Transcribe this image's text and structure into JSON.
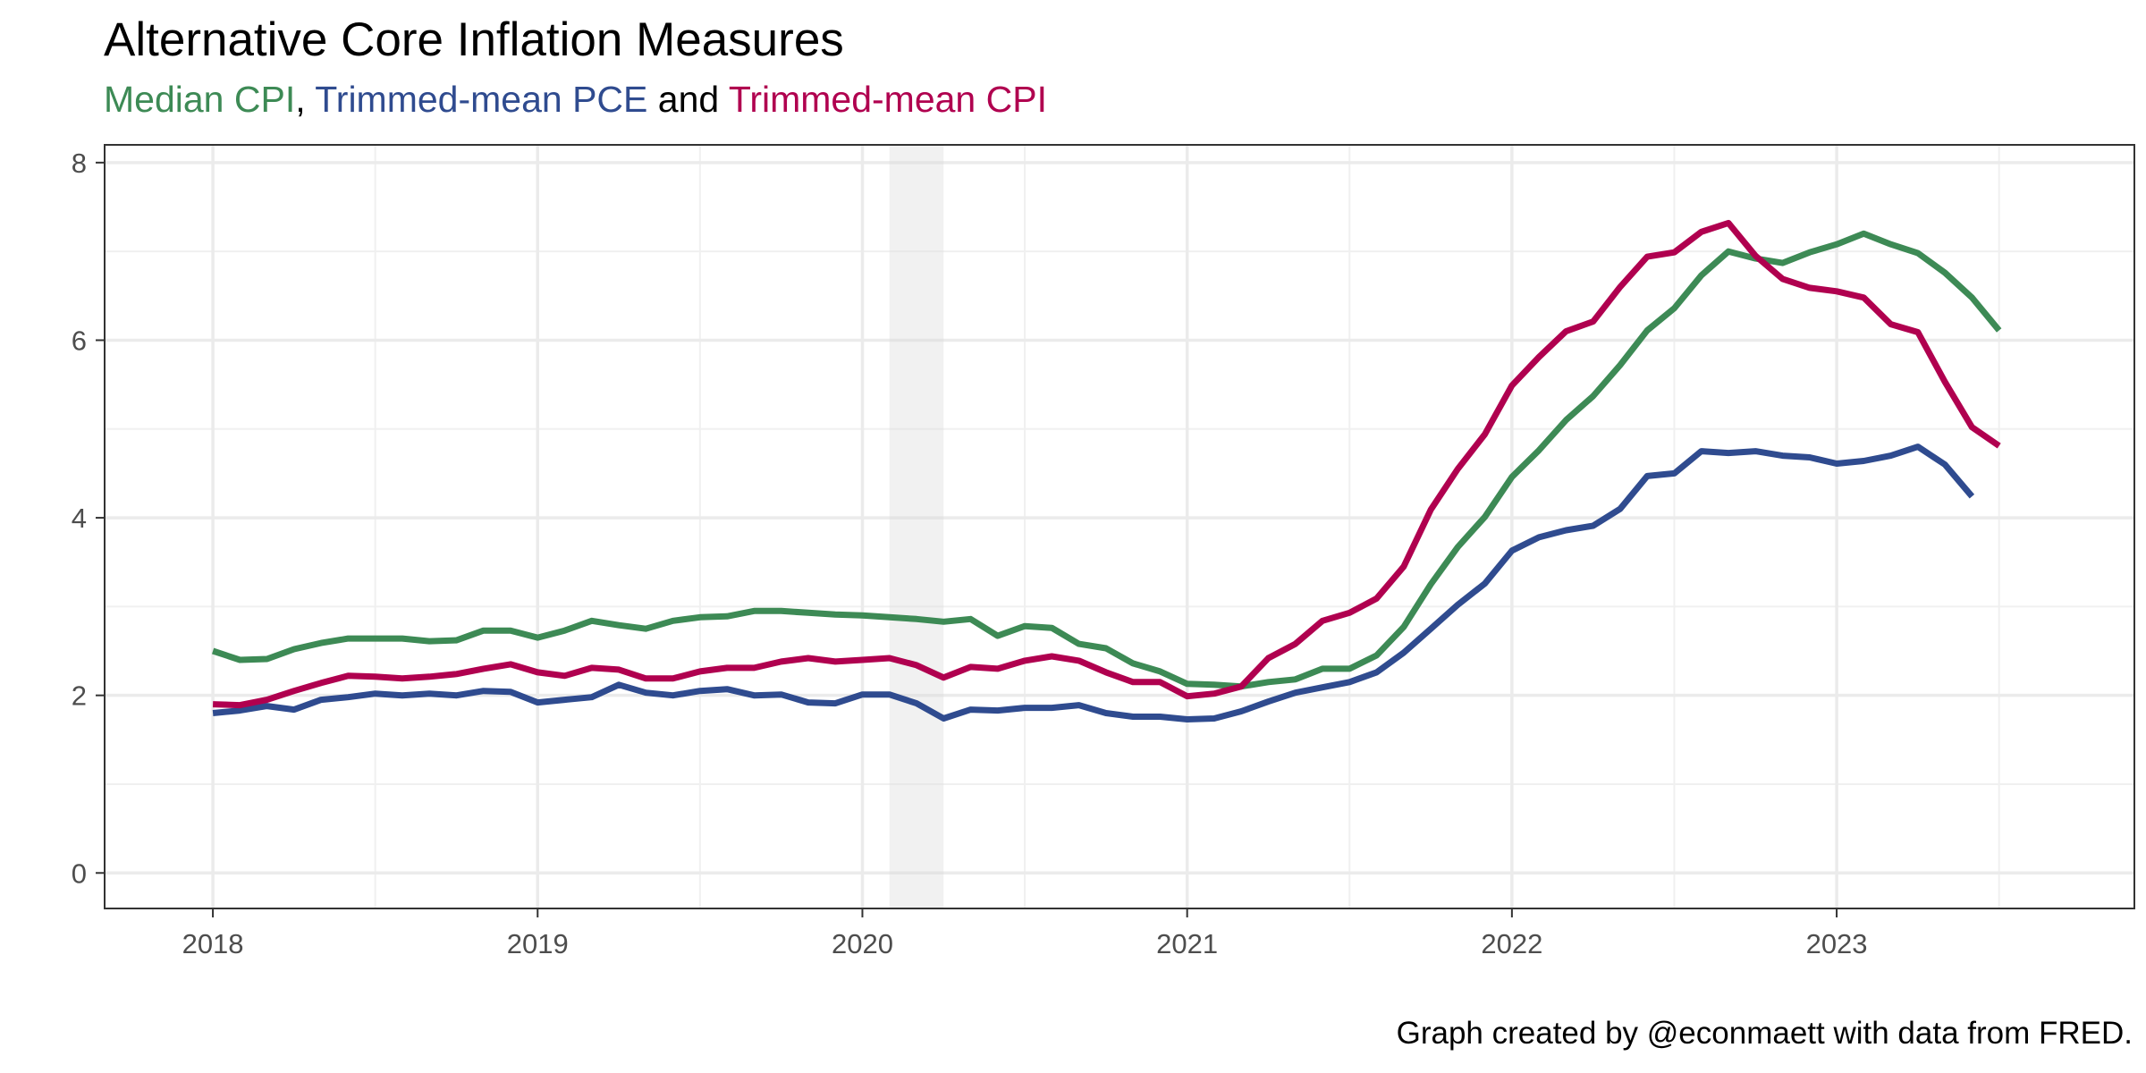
{
  "title": "Alternative Core Inflation Measures",
  "subtitle": {
    "part1": "Median CPI",
    "sep1": ", ",
    "part2": "Trimmed-mean PCE",
    "sep2": " and ",
    "part3": "Trimmed-mean CPI"
  },
  "caption": "Graph created by @econmaett with data from FRED.",
  "colors": {
    "median_cpi": "#3d8a55",
    "trimmed_pce": "#2f4b8f",
    "trimmed_cpi": "#b0004f",
    "recession": "#e8e8e8"
  },
  "chart_data": {
    "type": "line",
    "title": "Alternative Core Inflation Measures",
    "xlabel": "",
    "ylabel": "",
    "x_start": "2018-01",
    "x_frequency": "monthly",
    "x_ticks": [
      "2018",
      "2019",
      "2020",
      "2021",
      "2022",
      "2023"
    ],
    "y_ticks": [
      "0",
      "2",
      "4",
      "6",
      "8"
    ],
    "xlim": [
      "2017-09",
      "2023-12"
    ],
    "ylim": [
      -0.4,
      8.2
    ],
    "grid": true,
    "shaded_period": [
      "2020-02",
      "2020-04"
    ],
    "series": [
      {
        "name": "Median CPI",
        "values": [
          2.5,
          2.4,
          2.41,
          2.52,
          2.59,
          2.64,
          2.64,
          2.64,
          2.61,
          2.62,
          2.73,
          2.73,
          2.65,
          2.73,
          2.84,
          2.79,
          2.75,
          2.84,
          2.88,
          2.89,
          2.95,
          2.95,
          2.93,
          2.91,
          2.9,
          2.88,
          2.86,
          2.83,
          2.86,
          2.67,
          2.78,
          2.76,
          2.58,
          2.53,
          2.36,
          2.27,
          2.13,
          2.12,
          2.1,
          2.15,
          2.18,
          2.3,
          2.3,
          2.45,
          2.77,
          3.25,
          3.67,
          4.01,
          4.46,
          4.76,
          5.1,
          5.37,
          5.72,
          6.11,
          6.36,
          6.73,
          7.0,
          6.92,
          6.87,
          6.99,
          7.08,
          7.2,
          7.08,
          6.98,
          6.76,
          6.48,
          6.11
        ]
      },
      {
        "name": "Trimmed-mean PCE",
        "values": [
          1.8,
          1.83,
          1.88,
          1.84,
          1.95,
          1.98,
          2.02,
          2.0,
          2.02,
          2.0,
          2.05,
          2.04,
          1.92,
          1.95,
          1.98,
          2.12,
          2.03,
          2.0,
          2.05,
          2.07,
          2.0,
          2.01,
          1.92,
          1.91,
          2.01,
          2.01,
          1.91,
          1.74,
          1.84,
          1.83,
          1.86,
          1.86,
          1.89,
          1.8,
          1.76,
          1.76,
          1.73,
          1.74,
          1.82,
          1.93,
          2.03,
          2.09,
          2.15,
          2.26,
          2.48,
          2.75,
          3.02,
          3.26,
          3.63,
          3.78,
          3.86,
          3.91,
          4.1,
          4.47,
          4.5,
          4.75,
          4.73,
          4.75,
          4.7,
          4.68,
          4.61,
          4.64,
          4.7,
          4.8,
          4.6,
          4.24
        ]
      },
      {
        "name": "Trimmed-mean CPI",
        "values": [
          1.9,
          1.89,
          1.95,
          2.05,
          2.14,
          2.22,
          2.21,
          2.19,
          2.21,
          2.24,
          2.3,
          2.35,
          2.26,
          2.22,
          2.31,
          2.29,
          2.19,
          2.19,
          2.27,
          2.31,
          2.31,
          2.38,
          2.42,
          2.38,
          2.4,
          2.42,
          2.34,
          2.2,
          2.32,
          2.3,
          2.39,
          2.44,
          2.39,
          2.26,
          2.15,
          2.15,
          1.99,
          2.02,
          2.1,
          2.42,
          2.58,
          2.84,
          2.93,
          3.09,
          3.45,
          4.09,
          4.55,
          4.94,
          5.49,
          5.81,
          6.1,
          6.21,
          6.6,
          6.94,
          6.99,
          7.22,
          7.32,
          6.95,
          6.69,
          6.59,
          6.55,
          6.48,
          6.18,
          6.09,
          5.53,
          5.02,
          4.81
        ]
      }
    ]
  }
}
